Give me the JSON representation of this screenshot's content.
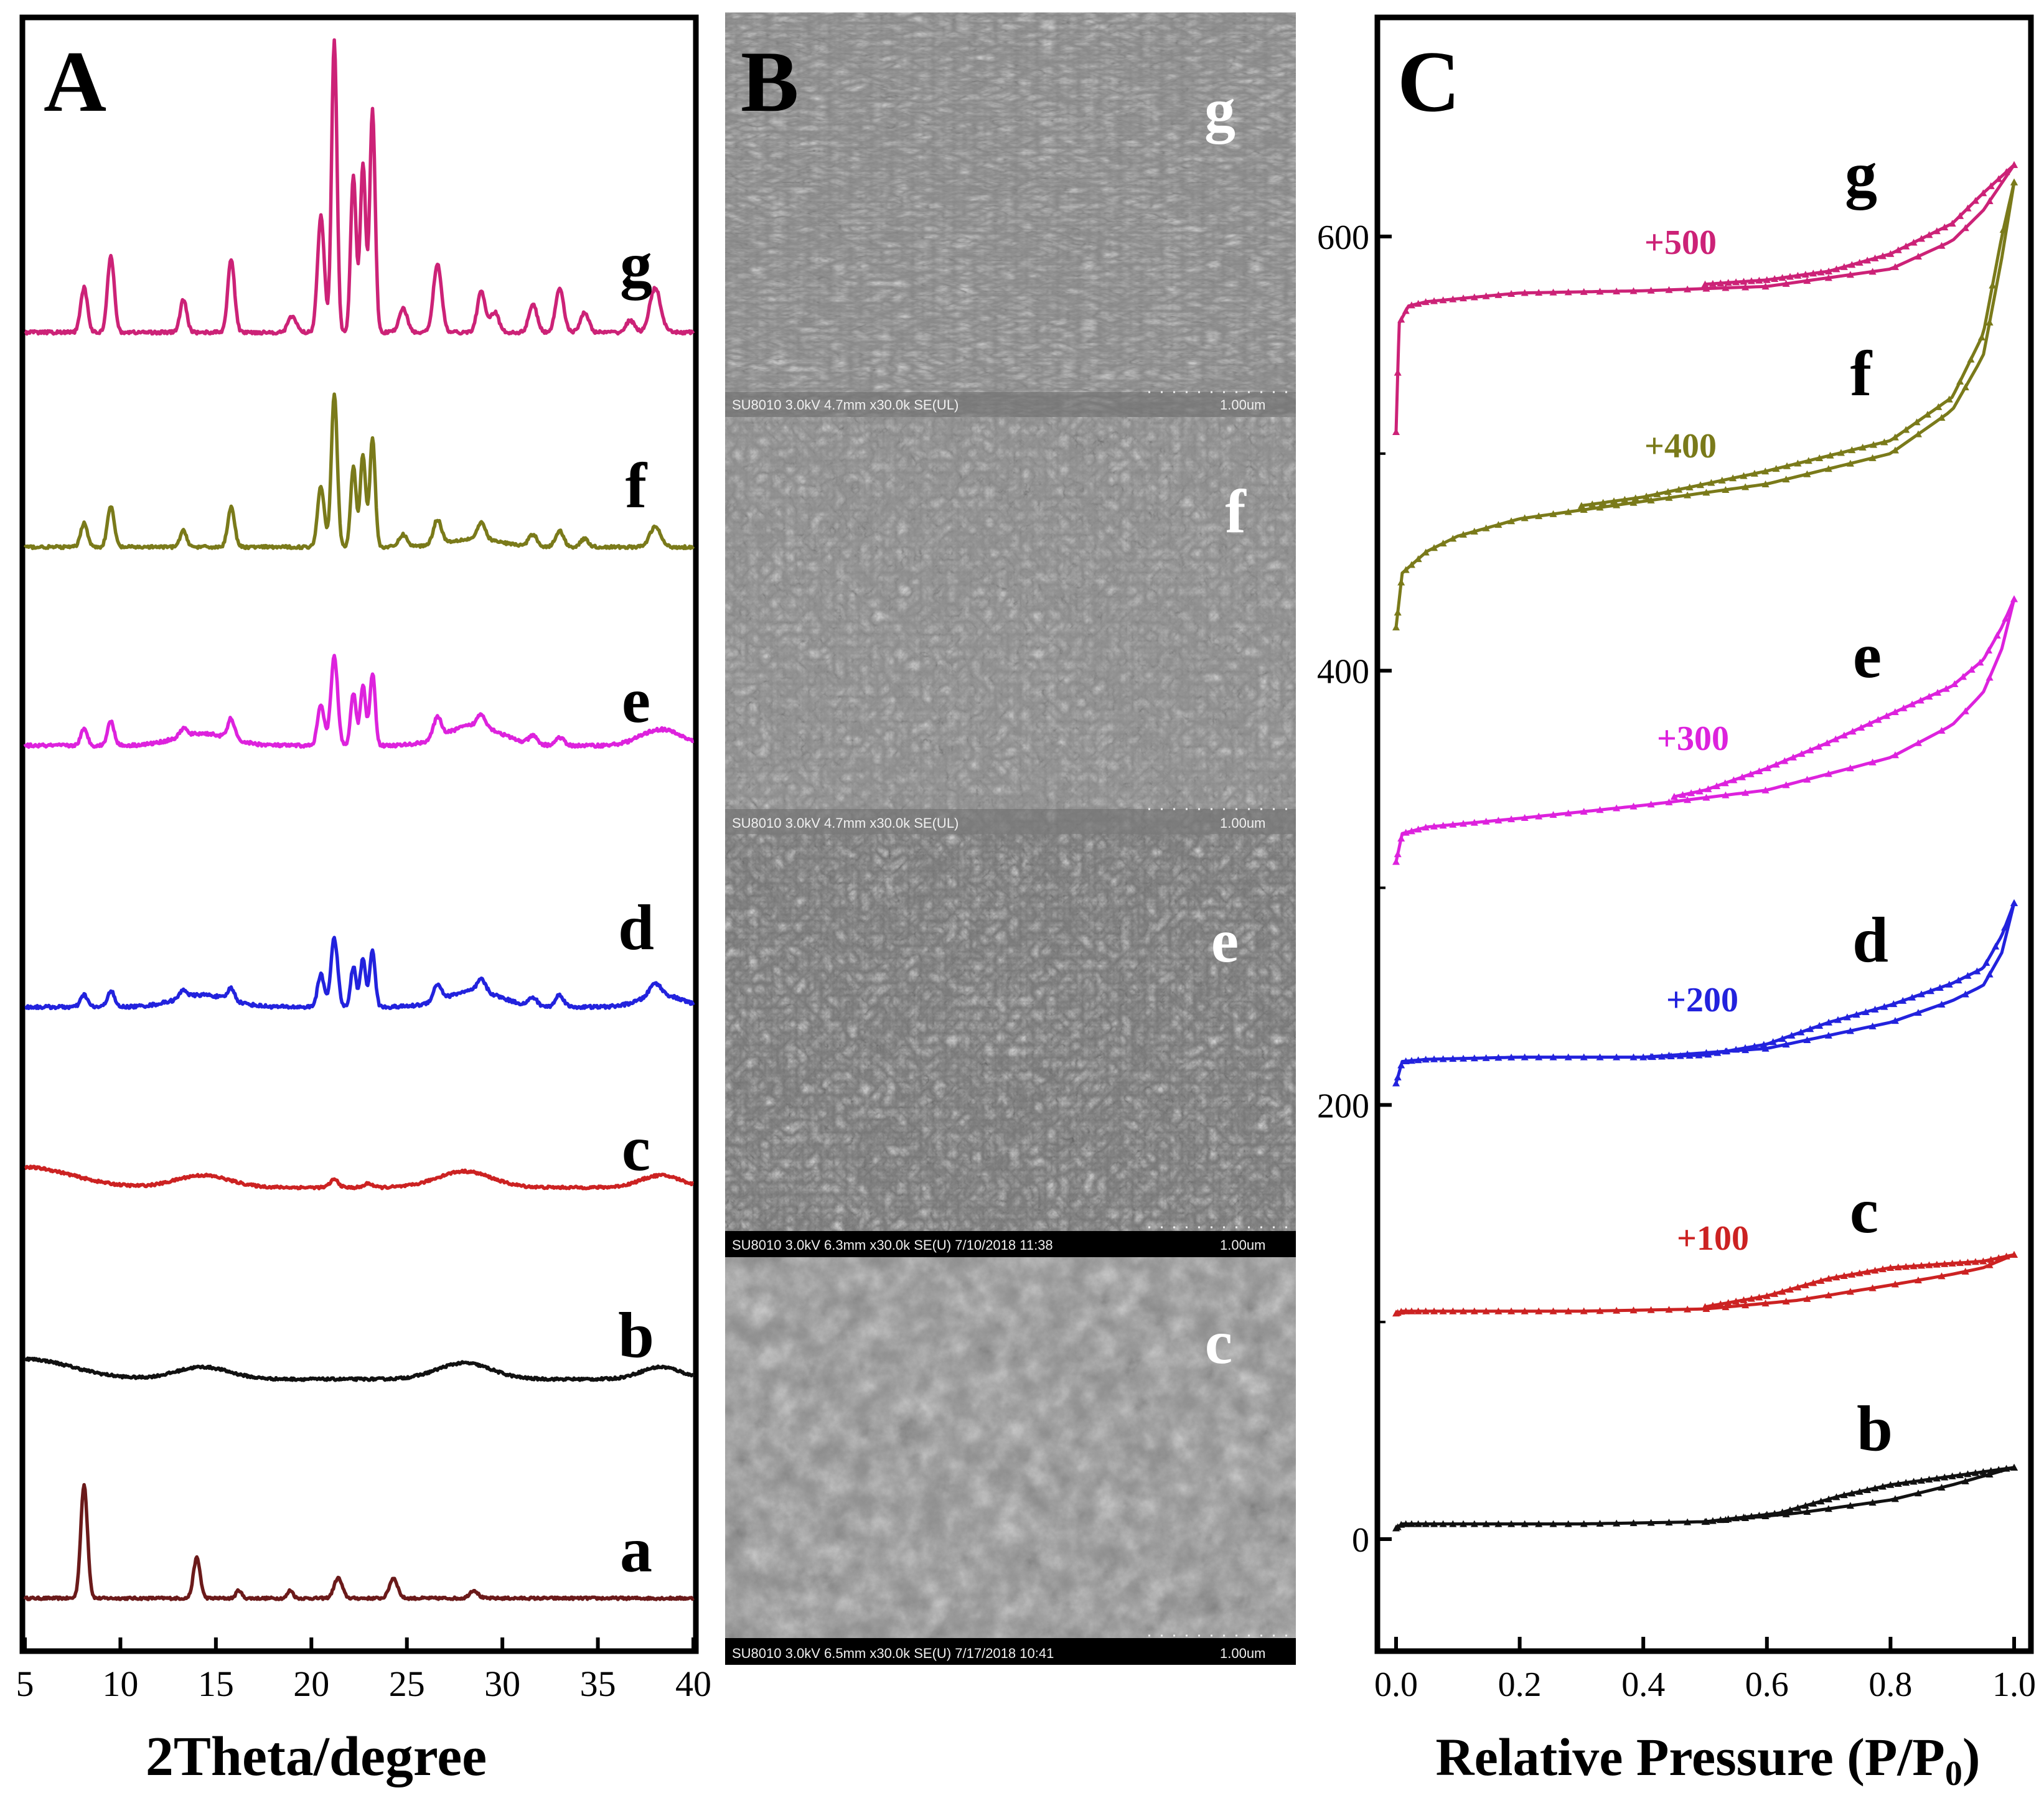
{
  "figure": {
    "panels": [
      "A",
      "B",
      "C"
    ]
  },
  "colors": {
    "a": "#6b1a1a",
    "b": "#111111",
    "c": "#cc2222",
    "d": "#2222dd",
    "e": "#dd22dd",
    "f": "#7a7a1a",
    "g": "#cc2277",
    "sem_bg": "#7d7d7d",
    "axis": "#000000"
  },
  "chart_data": [
    {
      "panel": "A",
      "type": "line",
      "title": "",
      "xlabel": "2Theta/degree",
      "ylabel": "",
      "xlim": [
        5,
        40
      ],
      "xticks": [
        5,
        10,
        15,
        20,
        25,
        30,
        35,
        40
      ],
      "yticks_shown": false,
      "series": [
        {
          "name": "a",
          "baseline": 0.3,
          "noise": 0.6,
          "peaks": [
            [
              8.1,
              28,
              0.25
            ],
            [
              14.0,
              10,
              0.25
            ],
            [
              16.2,
              2,
              0.2
            ],
            [
              18.9,
              2,
              0.2
            ],
            [
              21.4,
              5,
              0.3
            ],
            [
              24.3,
              5,
              0.3
            ],
            [
              28.5,
              2,
              0.3
            ]
          ]
        },
        {
          "name": "b",
          "baseline": 8,
          "noise": 0.6,
          "humps": [
            [
              14.3,
              3,
              2.0
            ],
            [
              28.0,
              4,
              2.0
            ],
            [
              38.3,
              3,
              1.5
            ],
            [
              5.0,
              5,
              3.5
            ]
          ]
        },
        {
          "name": "c",
          "baseline": 8,
          "noise": 0.6,
          "humps": [
            [
              14.3,
              3,
              2.0
            ],
            [
              28.0,
              4,
              2.0
            ],
            [
              38.3,
              3,
              1.5
            ],
            [
              5.0,
              5,
              3.5
            ]
          ],
          "peaks": [
            [
              21.2,
              2,
              0.3
            ],
            [
              23.0,
              1,
              0.3
            ]
          ]
        },
        {
          "name": "d",
          "baseline": 8,
          "noise": 0.8,
          "humps": [
            [
              14.3,
              3,
              2.0
            ],
            [
              28.5,
              4,
              2.0
            ],
            [
              38.3,
              3,
              1.5
            ]
          ],
          "peaks": [
            [
              8.1,
              3,
              0.25
            ],
            [
              9.5,
              4,
              0.25
            ],
            [
              13.3,
              2,
              0.25
            ],
            [
              15.8,
              3,
              0.25
            ],
            [
              20.5,
              8,
              0.25
            ],
            [
              21.2,
              17,
              0.25
            ],
            [
              22.2,
              10,
              0.2
            ],
            [
              22.7,
              12,
              0.2
            ],
            [
              23.2,
              14,
              0.2
            ],
            [
              26.6,
              4,
              0.3
            ],
            [
              28.9,
              3,
              0.3
            ],
            [
              31.6,
              2,
              0.3
            ],
            [
              33.0,
              3,
              0.3
            ],
            [
              38.0,
              3,
              0.4
            ]
          ]
        },
        {
          "name": "e",
          "baseline": 8,
          "noise": 0.8,
          "humps": [
            [
              14.3,
              3,
              2.0
            ],
            [
              28.5,
              5,
              2.0
            ],
            [
              38.3,
              4,
              1.5
            ]
          ],
          "peaks": [
            [
              8.1,
              4,
              0.25
            ],
            [
              9.5,
              6,
              0.25
            ],
            [
              13.3,
              2,
              0.25
            ],
            [
              15.8,
              5,
              0.25
            ],
            [
              20.5,
              10,
              0.25
            ],
            [
              21.2,
              22,
              0.25
            ],
            [
              22.2,
              13,
              0.2
            ],
            [
              22.7,
              15,
              0.2
            ],
            [
              23.2,
              18,
              0.2
            ],
            [
              26.6,
              5,
              0.3
            ],
            [
              28.9,
              3,
              0.3
            ],
            [
              31.6,
              2,
              0.3
            ],
            [
              33.0,
              2,
              0.3
            ]
          ]
        },
        {
          "name": "f",
          "baseline": 4,
          "noise": 0.7,
          "humps": [
            [
              28.5,
              2,
              2.0
            ]
          ],
          "peaks": [
            [
              8.1,
              6,
              0.25
            ],
            [
              9.5,
              10,
              0.25
            ],
            [
              13.3,
              4,
              0.25
            ],
            [
              15.8,
              10,
              0.25
            ],
            [
              20.5,
              15,
              0.25
            ],
            [
              21.2,
              38,
              0.22
            ],
            [
              22.2,
              20,
              0.2
            ],
            [
              22.7,
              23,
              0.2
            ],
            [
              23.2,
              27,
              0.2
            ],
            [
              24.8,
              3,
              0.3
            ],
            [
              26.6,
              6,
              0.3
            ],
            [
              28.9,
              4,
              0.3
            ],
            [
              31.6,
              3,
              0.3
            ],
            [
              33.0,
              4,
              0.3
            ],
            [
              34.3,
              2,
              0.3
            ],
            [
              38.0,
              5,
              0.4
            ]
          ]
        },
        {
          "name": "g",
          "baseline": 4,
          "noise": 0.8,
          "peaks": [
            [
              8.1,
              11,
              0.25
            ],
            [
              9.5,
              19,
              0.25
            ],
            [
              13.3,
              8,
              0.25
            ],
            [
              15.8,
              18,
              0.25
            ],
            [
              19.0,
              4,
              0.3
            ],
            [
              20.5,
              29,
              0.25
            ],
            [
              21.2,
              72,
              0.2
            ],
            [
              22.2,
              39,
              0.2
            ],
            [
              22.7,
              42,
              0.2
            ],
            [
              23.2,
              55,
              0.2
            ],
            [
              24.8,
              6,
              0.3
            ],
            [
              26.6,
              17,
              0.3
            ],
            [
              28.9,
              10,
              0.3
            ],
            [
              29.6,
              5,
              0.3
            ],
            [
              31.6,
              7,
              0.3
            ],
            [
              33.0,
              11,
              0.3
            ],
            [
              34.3,
              5,
              0.3
            ],
            [
              36.7,
              3,
              0.3
            ],
            [
              38.0,
              11,
              0.4
            ]
          ]
        }
      ],
      "stack_order": [
        "a",
        "b",
        "c",
        "d",
        "e",
        "f",
        "g"
      ]
    },
    {
      "panel": "C",
      "type": "line",
      "title": "",
      "xlabel": "Relative Pressure (P/P",
      "xlabel_sub": "0",
      "xlabel_tail": ")",
      "ylabel": "",
      "xlim": [
        0,
        1
      ],
      "ylim": [
        -50,
        700
      ],
      "xticks": [
        0.0,
        0.2,
        0.4,
        0.6,
        0.8,
        1.0
      ],
      "xtick_labels": [
        "0.0",
        "0.2",
        "0.4",
        "0.6",
        "0.8",
        "1.0"
      ],
      "yticks": [
        0,
        200,
        400,
        600
      ],
      "ytick_labels": [
        "0",
        "200",
        "400",
        "600"
      ],
      "series": [
        {
          "name": "b",
          "offset": 0,
          "adsorption": [
            [
              0,
              5
            ],
            [
              0.01,
              7
            ],
            [
              0.1,
              7
            ],
            [
              0.3,
              7
            ],
            [
              0.5,
              8
            ],
            [
              0.65,
              12
            ],
            [
              0.8,
              18
            ],
            [
              0.9,
              25
            ],
            [
              0.95,
              29
            ],
            [
              1.0,
              33
            ]
          ],
          "desorption": [
            [
              1.0,
              33
            ],
            [
              0.95,
              31
            ],
            [
              0.9,
              29
            ],
            [
              0.8,
              25
            ],
            [
              0.72,
              20
            ],
            [
              0.62,
              12
            ],
            [
              0.5,
              8
            ]
          ]
        },
        {
          "name": "c",
          "offset": 100,
          "adsorption": [
            [
              0,
              4
            ],
            [
              0.01,
              5
            ],
            [
              0.1,
              5
            ],
            [
              0.3,
              5
            ],
            [
              0.5,
              6
            ],
            [
              0.65,
              10
            ],
            [
              0.8,
              17
            ],
            [
              0.9,
              22
            ],
            [
              0.95,
              25
            ],
            [
              1.0,
              31
            ]
          ],
          "desorption": [
            [
              1.0,
              31
            ],
            [
              0.95,
              28
            ],
            [
              0.9,
              27
            ],
            [
              0.8,
              25
            ],
            [
              0.7,
              20
            ],
            [
              0.6,
              12
            ],
            [
              0.5,
              7
            ]
          ]
        },
        {
          "name": "d",
          "offset": 200,
          "adsorption": [
            [
              0,
              10
            ],
            [
              0.01,
              20
            ],
            [
              0.05,
              21
            ],
            [
              0.2,
              22
            ],
            [
              0.4,
              22
            ],
            [
              0.6,
              26
            ],
            [
              0.8,
              38
            ],
            [
              0.9,
              48
            ],
            [
              0.95,
              55
            ],
            [
              0.98,
              70
            ],
            [
              1.0,
              93
            ]
          ],
          "desorption": [
            [
              1.0,
              93
            ],
            [
              0.98,
              78
            ],
            [
              0.95,
              63
            ],
            [
              0.9,
              56
            ],
            [
              0.8,
              46
            ],
            [
              0.7,
              38
            ],
            [
              0.6,
              28
            ],
            [
              0.5,
              23
            ],
            [
              0.4,
              22
            ]
          ]
        },
        {
          "name": "e",
          "offset": 300,
          "adsorption": [
            [
              0,
              12
            ],
            [
              0.01,
              25
            ],
            [
              0.05,
              28
            ],
            [
              0.2,
              32
            ],
            [
              0.4,
              38
            ],
            [
              0.6,
              45
            ],
            [
              0.8,
              60
            ],
            [
              0.9,
              75
            ],
            [
              0.95,
              90
            ],
            [
              0.98,
              110
            ],
            [
              1.0,
              133
            ]
          ],
          "desorption": [
            [
              1.0,
              133
            ],
            [
              0.98,
              120
            ],
            [
              0.95,
              105
            ],
            [
              0.9,
              93
            ],
            [
              0.8,
              80
            ],
            [
              0.7,
              67
            ],
            [
              0.6,
              55
            ],
            [
              0.5,
              45
            ],
            [
              0.45,
              42
            ]
          ]
        },
        {
          "name": "f",
          "offset": 400,
          "adsorption": [
            [
              0,
              20
            ],
            [
              0.01,
              45
            ],
            [
              0.05,
              55
            ],
            [
              0.1,
              62
            ],
            [
              0.2,
              70
            ],
            [
              0.4,
              78
            ],
            [
              0.6,
              86
            ],
            [
              0.8,
              100
            ],
            [
              0.9,
              120
            ],
            [
              0.95,
              145
            ],
            [
              0.98,
              190
            ],
            [
              1.0,
              225
            ]
          ],
          "desorption": [
            [
              1.0,
              225
            ],
            [
              0.98,
              200
            ],
            [
              0.95,
              155
            ],
            [
              0.9,
              126
            ],
            [
              0.8,
              106
            ],
            [
              0.6,
              92
            ],
            [
              0.4,
              80
            ],
            [
              0.3,
              76
            ]
          ]
        },
        {
          "name": "g",
          "offset": 500,
          "adsorption": [
            [
              0,
              10
            ],
            [
              0.005,
              60
            ],
            [
              0.02,
              68
            ],
            [
              0.05,
              70
            ],
            [
              0.2,
              74
            ],
            [
              0.4,
              75
            ],
            [
              0.6,
              77
            ],
            [
              0.8,
              85
            ],
            [
              0.9,
              98
            ],
            [
              0.95,
              112
            ],
            [
              1.0,
              133
            ]
          ],
          "desorption": [
            [
              1.0,
              133
            ],
            [
              0.95,
              120
            ],
            [
              0.9,
              106
            ],
            [
              0.8,
              92
            ],
            [
              0.7,
              84
            ],
            [
              0.6,
              80
            ],
            [
              0.5,
              78
            ]
          ]
        }
      ]
    }
  ],
  "panelA": {
    "label": "A",
    "curve_labels": [
      "g",
      "f",
      "e",
      "d",
      "c",
      "b",
      "a"
    ]
  },
  "panelB": {
    "label": "B",
    "images": [
      {
        "letter": "g",
        "caption": "SU8010 3.0kV 4.7mm x30.0k SE(UL)",
        "scale": "1.00um"
      },
      {
        "letter": "f",
        "caption": "SU8010 3.0kV 4.7mm x30.0k SE(UL)",
        "scale": "1.00um"
      },
      {
        "letter": "e",
        "caption": "SU8010 3.0kV 6.3mm x30.0k SE(U) 7/10/2018 11:38",
        "scale": "1.00um"
      },
      {
        "letter": "c",
        "caption": "SU8010 3.0kV 6.5mm x30.0k SE(U) 7/17/2018 10:41",
        "scale": "1.00um"
      }
    ]
  },
  "panelC": {
    "label": "C",
    "curve_labels": [
      "g",
      "f",
      "e",
      "d",
      "c",
      "b"
    ],
    "offset_labels": [
      "+500",
      "+400",
      "+300",
      "+200",
      "+100"
    ]
  }
}
